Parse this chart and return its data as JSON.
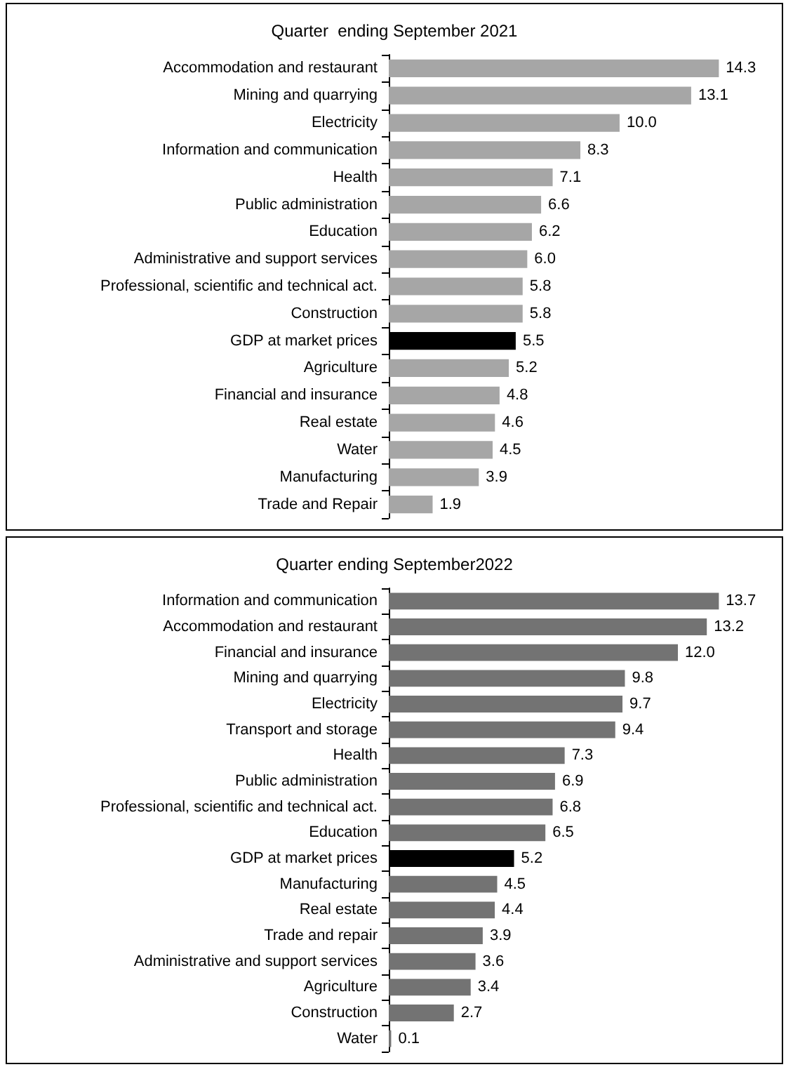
{
  "chart_data": [
    {
      "type": "bar",
      "orientation": "horizontal",
      "title": "Quarter  ending September 2021",
      "categories": [
        "Accommodation and restaurant",
        "Mining and quarrying",
        "Electricity",
        "Information and communication",
        "Health",
        "Public administration",
        "Education",
        "Administrative and support services",
        "Professional, scientific and technical act.",
        "Construction",
        "GDP at market prices",
        "Agriculture",
        "Financial and insurance",
        "Real estate",
        "Water",
        "Manufacturing",
        "Trade and Repair"
      ],
      "values": [
        14.3,
        13.1,
        10.0,
        8.3,
        7.1,
        6.6,
        6.2,
        6.0,
        5.8,
        5.8,
        5.5,
        5.2,
        4.8,
        4.6,
        4.5,
        3.9,
        1.9
      ],
      "value_labels": [
        "14.3",
        "13.1",
        "10.0",
        "8.3",
        "7.1",
        "6.6",
        "6.2",
        "6.0",
        "5.8",
        "5.8",
        "5.5",
        "5.2",
        "4.8",
        "4.6",
        "4.5",
        "3.9",
        "1.9"
      ],
      "colors": [
        "#a6a6a6",
        "#a6a6a6",
        "#a6a6a6",
        "#a6a6a6",
        "#a6a6a6",
        "#a6a6a6",
        "#a6a6a6",
        "#a6a6a6",
        "#a6a6a6",
        "#a6a6a6",
        "#000000",
        "#a6a6a6",
        "#a6a6a6",
        "#a6a6a6",
        "#a6a6a6",
        "#a6a6a6",
        "#a6a6a6"
      ]
    },
    {
      "type": "bar",
      "orientation": "horizontal",
      "title": "Quarter ending September2022",
      "categories": [
        "Information and communication",
        "Accommodation and restaurant",
        "Financial and insurance",
        "Mining and quarrying",
        "Electricity",
        "Transport and storage",
        "Health",
        "Public administration",
        "Professional, scientific and technical act.",
        "Education",
        "GDP at market prices",
        "Manufacturing",
        "Real estate",
        "Trade and repair",
        "Administrative and support services",
        "Agriculture",
        "Construction",
        "Water"
      ],
      "values": [
        13.7,
        13.2,
        12.0,
        9.8,
        9.7,
        9.4,
        7.3,
        6.9,
        6.8,
        6.5,
        5.2,
        4.5,
        4.4,
        3.9,
        3.6,
        3.4,
        2.7,
        0.1
      ],
      "value_labels": [
        "13.7",
        "13.2",
        "12.0",
        "9.8",
        "9.7",
        "9.4",
        "7.3",
        "6.9",
        "6.8",
        "6.5",
        "5.2",
        "4.5",
        "4.4",
        "3.9",
        "3.6",
        "3.4",
        "2.7",
        "0.1"
      ],
      "colors": [
        "#737373",
        "#737373",
        "#737373",
        "#737373",
        "#737373",
        "#737373",
        "#737373",
        "#737373",
        "#737373",
        "#737373",
        "#000000",
        "#737373",
        "#737373",
        "#737373",
        "#737373",
        "#737373",
        "#737373",
        "#737373"
      ]
    }
  ]
}
